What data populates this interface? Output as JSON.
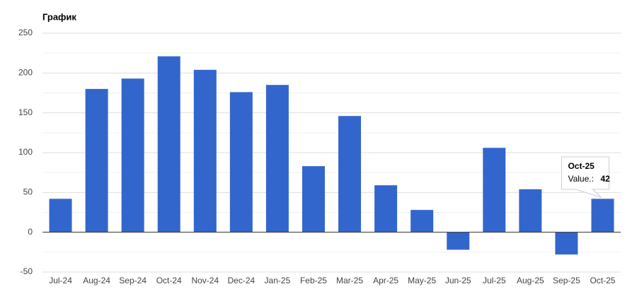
{
  "chart_data": {
    "type": "bar",
    "title": "График",
    "categories": [
      "Jul-24",
      "Aug-24",
      "Sep-24",
      "Oct-24",
      "Nov-24",
      "Dec-24",
      "Jan-25",
      "Feb-25",
      "Mar-25",
      "Apr-25",
      "May-25",
      "Jun-25",
      "Jul-25",
      "Aug-25",
      "Sep-25",
      "Oct-25"
    ],
    "values": [
      42,
      180,
      193,
      221,
      204,
      176,
      185,
      83,
      146,
      59,
      28,
      -22,
      106,
      54,
      -28,
      42
    ],
    "color": "#3366cc",
    "ylim": [
      -50,
      250
    ],
    "yticks": [
      -50,
      0,
      50,
      100,
      150,
      200,
      250
    ],
    "grid": true,
    "tooltip": {
      "index": 15,
      "label": "Value.:"
    }
  }
}
